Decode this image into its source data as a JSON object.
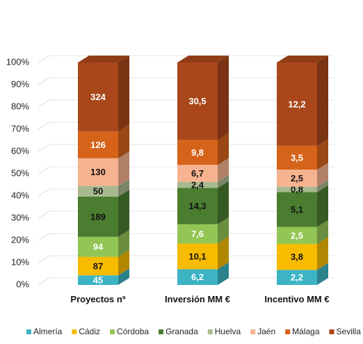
{
  "chart_data": {
    "type": "bar",
    "stack": "percent",
    "categories": [
      "Proyectos nº",
      "Inversión MM €",
      "Incentivo MM €"
    ],
    "ylim": [
      0,
      100
    ],
    "yticks": [
      {
        "value": 0,
        "label": "0%"
      },
      {
        "value": 10,
        "label": "10%"
      },
      {
        "value": 20,
        "label": "20%"
      },
      {
        "value": 30,
        "label": "30%"
      },
      {
        "value": 40,
        "label": "40%"
      },
      {
        "value": 50,
        "label": "50%"
      },
      {
        "value": 60,
        "label": "60%"
      },
      {
        "value": 70,
        "label": "70%"
      },
      {
        "value": 80,
        "label": "80%"
      },
      {
        "value": 90,
        "label": "90%"
      },
      {
        "value": 100,
        "label": "100%"
      }
    ],
    "grid": true,
    "legend": "bottom",
    "series": [
      {
        "name": "Almería",
        "color": "#3cb4c4",
        "values": [
          45,
          6.2,
          2.2
        ],
        "value_labels": [
          "45",
          "6,2",
          "2,2"
        ]
      },
      {
        "name": "Cádiz",
        "color": "#f7bb00",
        "values": [
          87,
          10.1,
          3.8
        ],
        "value_labels": [
          "87",
          "10,1",
          "3,8"
        ]
      },
      {
        "name": "Córdoba",
        "color": "#93c555",
        "values": [
          94,
          7.6,
          2.5
        ],
        "value_labels": [
          "94",
          "7,6",
          "2,5"
        ]
      },
      {
        "name": "Granada",
        "color": "#4b7d31",
        "values": [
          189,
          14.3,
          5.1
        ],
        "value_labels": [
          "189",
          "14,3",
          "5,1"
        ]
      },
      {
        "name": "Huelva",
        "color": "#a9b98f",
        "values": [
          50,
          2.4,
          0.8
        ],
        "value_labels": [
          "50",
          "2,4",
          "0,8"
        ]
      },
      {
        "name": "Jaén",
        "color": "#f6b38f",
        "values": [
          130,
          6.7,
          2.5
        ],
        "value_labels": [
          "130",
          "6,7",
          "2,5"
        ]
      },
      {
        "name": "Málaga",
        "color": "#d5631a",
        "values": [
          126,
          9.8,
          3.5
        ],
        "value_labels": [
          "126",
          "9,8",
          "3,5"
        ]
      },
      {
        "name": "Sevilla",
        "color": "#a9471b",
        "values": [
          324,
          30.5,
          12.2
        ],
        "value_labels": [
          "324",
          "30,5",
          "12,2"
        ]
      }
    ]
  }
}
